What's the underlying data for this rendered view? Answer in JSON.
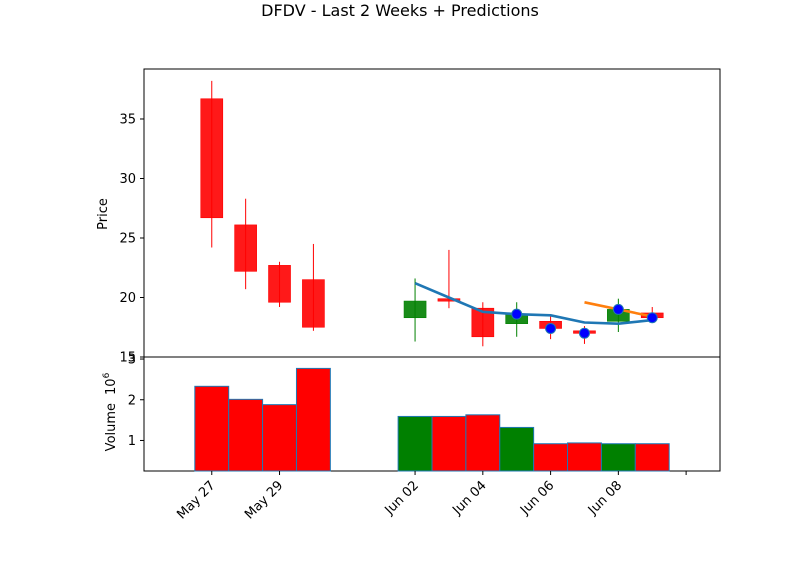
{
  "chart_data": [
    {
      "type": "candlestick",
      "title": "DFDV - Last 2 Weeks + Predictions",
      "ylabel": "Price",
      "ylim": [
        15,
        39.2
      ],
      "yticks": [
        15,
        20,
        25,
        30,
        35
      ],
      "candles": [
        {
          "date": "2025-05-27",
          "open": 36.7,
          "high": 38.2,
          "low": 24.2,
          "close": 26.7
        },
        {
          "date": "2025-05-28",
          "open": 26.1,
          "high": 28.3,
          "low": 20.7,
          "close": 22.2
        },
        {
          "date": "2025-05-29",
          "open": 22.7,
          "high": 23.0,
          "low": 19.2,
          "close": 19.6
        },
        {
          "date": "2025-05-30",
          "open": 21.5,
          "high": 24.5,
          "low": 17.2,
          "close": 17.5
        },
        {
          "date": "2025-06-02",
          "open": 18.3,
          "high": 21.6,
          "low": 16.3,
          "close": 19.7
        },
        {
          "date": "2025-06-03",
          "open": 19.9,
          "high": 24.0,
          "low": 19.1,
          "close": 19.8
        },
        {
          "date": "2025-06-04",
          "open": 19.1,
          "high": 19.6,
          "low": 15.9,
          "close": 16.7
        },
        {
          "date": "2025-06-05",
          "open": 17.8,
          "high": 19.6,
          "low": 16.7,
          "close": 18.6
        },
        {
          "date": "2025-06-06",
          "open": 18.0,
          "high": 18.6,
          "low": 16.5,
          "close": 17.4
        },
        {
          "date": "2025-06-07",
          "open": 17.2,
          "high": 17.6,
          "low": 16.1,
          "close": 17.0
        },
        {
          "date": "2025-06-08",
          "open": 18.0,
          "high": 19.9,
          "low": 17.1,
          "close": 19.0
        },
        {
          "date": "2025-06-09",
          "open": 18.7,
          "high": 19.2,
          "low": 17.9,
          "close": 18.3
        }
      ],
      "markers": [
        {
          "date": "2025-06-05",
          "value": 18.6
        },
        {
          "date": "2025-06-06",
          "value": 17.4
        },
        {
          "date": "2025-06-07",
          "value": 17.0
        },
        {
          "date": "2025-06-08",
          "value": 19.0
        },
        {
          "date": "2025-06-09",
          "value": 18.3
        }
      ],
      "series": [
        {
          "color": "#1f77b4",
          "points": [
            {
              "date": "2025-06-02",
              "value": 21.2
            },
            {
              "date": "2025-06-03",
              "value": 20.0
            },
            {
              "date": "2025-06-04",
              "value": 18.8
            },
            {
              "date": "2025-06-05",
              "value": 18.6
            },
            {
              "date": "2025-06-06",
              "value": 18.5
            },
            {
              "date": "2025-06-07",
              "value": 17.9
            },
            {
              "date": "2025-06-08",
              "value": 17.8
            },
            {
              "date": "2025-06-09",
              "value": 18.1
            }
          ]
        },
        {
          "color": "#ff7f0e",
          "points": [
            {
              "date": "2025-06-07",
              "value": 19.6
            },
            {
              "date": "2025-06-09",
              "value": 18.4
            }
          ]
        }
      ],
      "colors": {
        "up": "#008000",
        "down": "#ff0000",
        "marker": "#0000ff",
        "marker_edge": "#1f77b4"
      }
    },
    {
      "type": "bar",
      "ylabel": "Volume",
      "yunit_label": "10",
      "yunit_exponent": "6",
      "ylim": [
        0.25,
        3.05
      ],
      "yticks": [
        1,
        2,
        3
      ],
      "categories": [
        "2025-05-27",
        "2025-05-28",
        "2025-05-29",
        "2025-05-30",
        "2025-06-02",
        "2025-06-03",
        "2025-06-04",
        "2025-06-05",
        "2025-06-06",
        "2025-06-07",
        "2025-06-08",
        "2025-06-09"
      ],
      "values": [
        2.33,
        2.01,
        1.88,
        2.77,
        1.59,
        1.59,
        1.63,
        1.32,
        0.92,
        0.94,
        0.92,
        0.92
      ],
      "directions": [
        "down",
        "down",
        "down",
        "down",
        "up",
        "down",
        "down",
        "up",
        "down",
        "down",
        "up",
        "down"
      ]
    }
  ],
  "xaxis": {
    "xlim": [
      "2025-05-25",
      "2025-06-11"
    ],
    "ticks": [
      {
        "date": "2025-05-27",
        "label": "May 27"
      },
      {
        "date": "2025-05-29",
        "label": "May 29"
      },
      {
        "date": "2025-06-02",
        "label": "Jun 02"
      },
      {
        "date": "2025-06-04",
        "label": "Jun 04"
      },
      {
        "date": "2025-06-06",
        "label": "Jun 06"
      },
      {
        "date": "2025-06-08",
        "label": "Jun 08"
      },
      {
        "date": "2025-06-10",
        "label": ""
      }
    ]
  }
}
